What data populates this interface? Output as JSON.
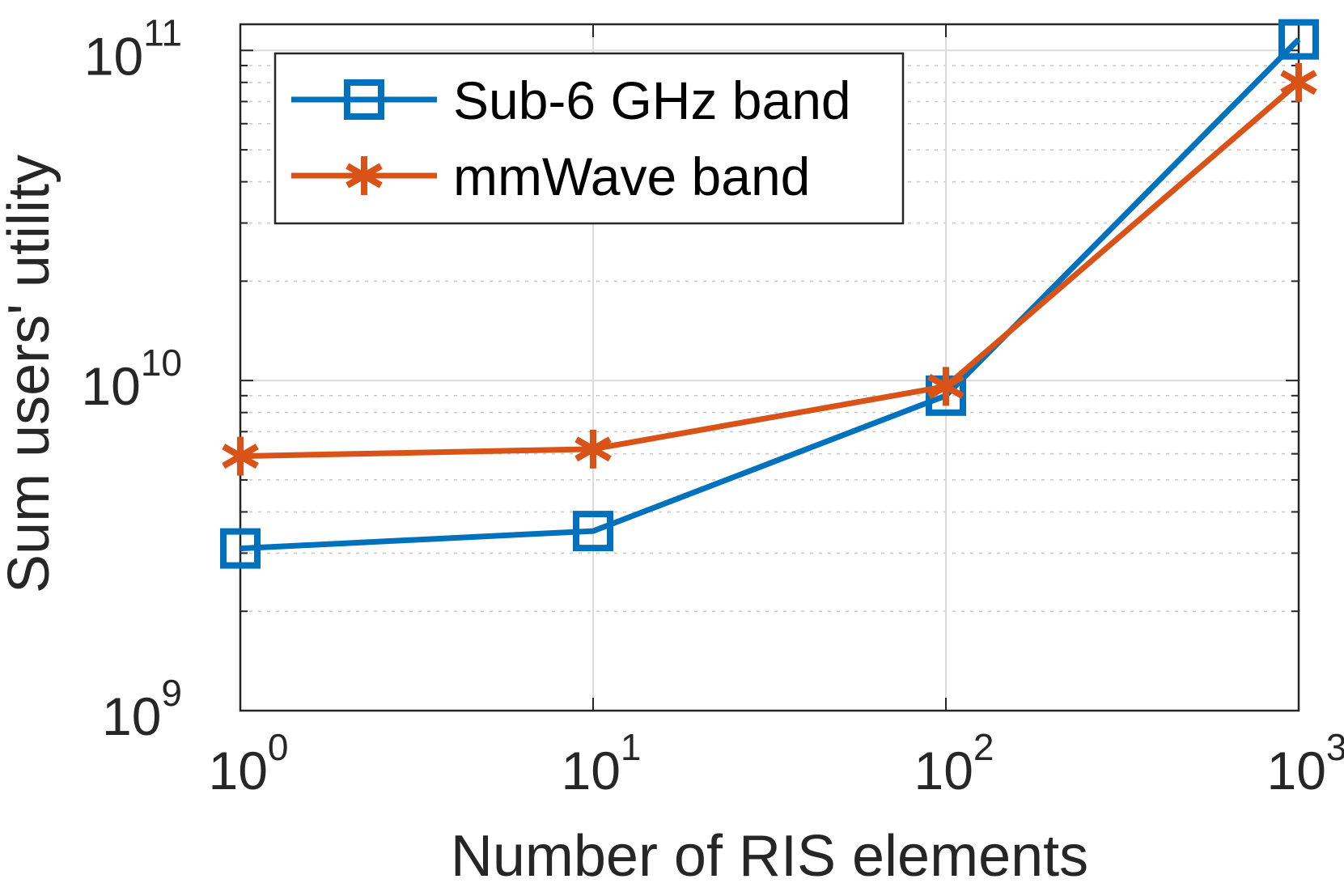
{
  "chart_data": {
    "type": "line",
    "title": "",
    "xlabel": "Number of RIS elements",
    "ylabel": "Sum users' utility",
    "xscale": "log",
    "yscale": "log",
    "xlim": [
      1,
      1000
    ],
    "ylim": [
      1000000000,
      120000000000
    ],
    "x": [
      1,
      10,
      100,
      1000
    ],
    "grid": true,
    "legend_position": "top-left",
    "x_ticks": [
      {
        "value": 1,
        "base": "10",
        "exp": "0"
      },
      {
        "value": 10,
        "base": "10",
        "exp": "1"
      },
      {
        "value": 100,
        "base": "10",
        "exp": "2"
      },
      {
        "value": 1000,
        "base": "10",
        "exp": "3"
      }
    ],
    "y_ticks": [
      {
        "value": 1000000000,
        "base": "10",
        "exp": "9"
      },
      {
        "value": 10000000000,
        "base": "10",
        "exp": "10"
      },
      {
        "value": 100000000000,
        "base": "10",
        "exp": "11"
      }
    ],
    "series": [
      {
        "name": "Sub-6 GHz band",
        "color": "#0072BD",
        "marker": "square",
        "values": [
          3100000000,
          3500000000,
          9000000000,
          108000000000
        ]
      },
      {
        "name": "mmWave band",
        "color": "#D95319",
        "marker": "asterisk",
        "values": [
          5900000000,
          6200000000,
          9600000000,
          80000000000
        ]
      }
    ]
  }
}
